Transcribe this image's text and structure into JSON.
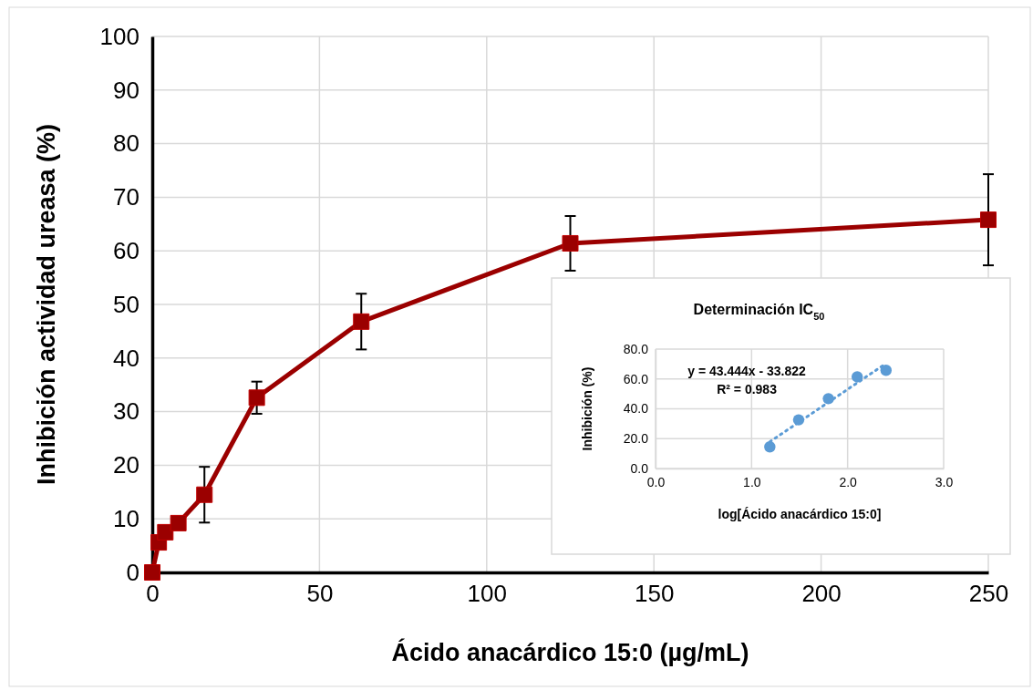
{
  "chart_data": [
    {
      "type": "line",
      "xlabel": "Ácido anacárdico 15:0 (µg/mL)",
      "ylabel": "Inhibición  actividad ureasa (%)",
      "xlim": [
        0,
        250
      ],
      "ylim": [
        0,
        100
      ],
      "xticks": [
        0,
        50,
        100,
        150,
        200,
        250
      ],
      "yticks": [
        0,
        10,
        20,
        30,
        40,
        50,
        60,
        70,
        80,
        90,
        100
      ],
      "grid": true,
      "marker": "square",
      "line_style": "solid",
      "x": [
        0,
        1.95,
        3.9,
        7.8,
        15.6,
        31.25,
        62.5,
        125,
        250
      ],
      "series": [
        {
          "color": "#9b0000",
          "values": [
            0,
            5.6,
            7.5,
            9.2,
            14.5,
            32.6,
            46.8,
            61.4,
            65.8
          ],
          "errors": [
            null,
            null,
            null,
            null,
            5.2,
            3,
            5.2,
            5.1,
            8.5
          ]
        }
      ]
    },
    {
      "type": "scatter",
      "title": "Determinación IC$_{50}$",
      "xlabel": "log[Ácido anacárdico 15:0]",
      "ylabel": "Inhibición (%)",
      "xlim": [
        0,
        3
      ],
      "ylim": [
        0,
        80
      ],
      "xticks": [
        {
          "value": 0,
          "label": "0.0"
        },
        {
          "value": 1,
          "label": "1.0"
        },
        {
          "value": 2,
          "label": "2.0"
        },
        {
          "value": 3,
          "label": "3.0"
        }
      ],
      "yticks": [
        {
          "value": 0,
          "label": "0.0"
        },
        {
          "value": 20,
          "label": "20.0"
        },
        {
          "value": 40,
          "label": "40.0"
        },
        {
          "value": 60,
          "label": "60.0"
        },
        {
          "value": 80,
          "label": "80.0"
        }
      ],
      "grid": true,
      "annotations": [
        "y = 43.444x - 33.822",
        "R² = 0.983"
      ],
      "series": [
        {
          "type": "scatter",
          "marker": "circle",
          "color": "#5b9bd5",
          "x": [
            1.19,
            1.49,
            1.8,
            2.1,
            2.4
          ],
          "values": [
            14.5,
            32.6,
            46.8,
            61.4,
            65.8
          ]
        },
        {
          "type": "line",
          "color": "#5b9bd5",
          "line_style": "dotted",
          "x": [
            1.19,
            2.4
          ],
          "values": [
            17.9,
            70.4
          ]
        }
      ]
    }
  ]
}
